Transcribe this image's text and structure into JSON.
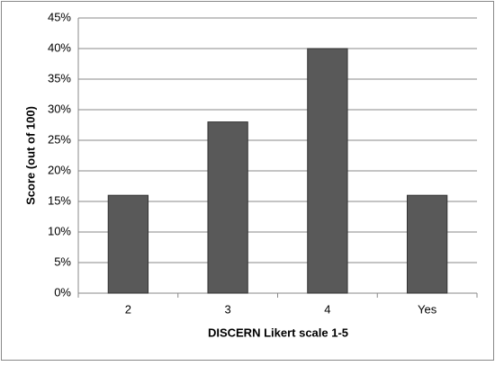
{
  "chart_data": {
    "type": "bar",
    "categories": [
      "2",
      "3",
      "4",
      "Yes"
    ],
    "values": [
      16,
      28,
      40,
      16
    ],
    "color": "#595959",
    "x_label": "DISCERN Likert scale 1-5",
    "y_label": "Score (out of 100)",
    "ylim": [
      0,
      45
    ],
    "yticks": [
      {
        "value": 0,
        "label": "0%"
      },
      {
        "value": 5,
        "label": "5%"
      },
      {
        "value": 10,
        "label": "10%"
      },
      {
        "value": 15,
        "label": "15%"
      },
      {
        "value": 20,
        "label": "20%"
      },
      {
        "value": 25,
        "label": "25%"
      },
      {
        "value": 30,
        "label": "30%"
      },
      {
        "value": 35,
        "label": "35%"
      },
      {
        "value": 40,
        "label": "40%"
      },
      {
        "value": 45,
        "label": "45%"
      }
    ],
    "grid": true
  }
}
